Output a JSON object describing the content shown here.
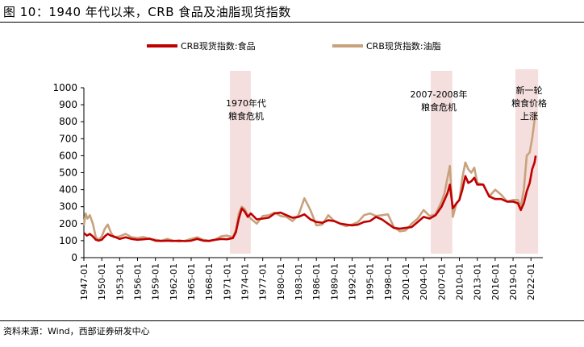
{
  "page": {
    "title": "图 10：1940 年代以来，CRB 食品及油脂现货指数",
    "source": "资料来源：Wind，西部证券研发中心"
  },
  "colors": {
    "food": "#c00000",
    "oils": "#c8a27c",
    "shade": "#f5dede"
  },
  "chart_data": {
    "type": "line",
    "title": "",
    "xlabel": "",
    "ylabel": "",
    "ylim": [
      0,
      1000
    ],
    "yticks": [
      0,
      100,
      200,
      300,
      400,
      500,
      600,
      700,
      800,
      900,
      1000
    ],
    "x_ticks": [
      "1947-01",
      "1950-01",
      "1953-01",
      "1956-01",
      "1959-01",
      "1962-01",
      "1965-01",
      "1968-01",
      "1971-01",
      "1974-01",
      "1977-01",
      "1980-01",
      "1983-01",
      "1986-01",
      "1989-01",
      "1992-01",
      "1995-01",
      "1998-01",
      "2001-01",
      "2004-01",
      "2007-01",
      "2010-01",
      "2013-01",
      "2016-01",
      "2019-01",
      "2022-01"
    ],
    "xlim": [
      1947.0,
      2024.0
    ],
    "grid": false,
    "legend": "top",
    "series": [
      {
        "name": "CRB现货指数:食品",
        "points": [
          [
            1947.0,
            145
          ],
          [
            1947.5,
            130
          ],
          [
            1948.0,
            140
          ],
          [
            1948.5,
            125
          ],
          [
            1949.0,
            105
          ],
          [
            1949.5,
            100
          ],
          [
            1950.0,
            105
          ],
          [
            1950.5,
            125
          ],
          [
            1951.0,
            140
          ],
          [
            1951.5,
            130
          ],
          [
            1952.0,
            125
          ],
          [
            1953.0,
            110
          ],
          [
            1954.0,
            120
          ],
          [
            1955.0,
            110
          ],
          [
            1956.0,
            105
          ],
          [
            1957.0,
            108
          ],
          [
            1958.0,
            112
          ],
          [
            1959.0,
            100
          ],
          [
            1960.0,
            98
          ],
          [
            1961.0,
            100
          ],
          [
            1962.0,
            98
          ],
          [
            1963.0,
            100
          ],
          [
            1964.0,
            97
          ],
          [
            1965.0,
            100
          ],
          [
            1966.0,
            110
          ],
          [
            1967.0,
            100
          ],
          [
            1968.0,
            98
          ],
          [
            1969.0,
            105
          ],
          [
            1970.0,
            110
          ],
          [
            1971.0,
            108
          ],
          [
            1972.0,
            115
          ],
          [
            1972.5,
            150
          ],
          [
            1973.0,
            230
          ],
          [
            1973.5,
            290
          ],
          [
            1974.0,
            270
          ],
          [
            1974.5,
            240
          ],
          [
            1975.0,
            260
          ],
          [
            1976.0,
            225
          ],
          [
            1977.0,
            230
          ],
          [
            1978.0,
            235
          ],
          [
            1979.0,
            260
          ],
          [
            1980.0,
            265
          ],
          [
            1981.0,
            250
          ],
          [
            1982.0,
            235
          ],
          [
            1983.0,
            240
          ],
          [
            1984.0,
            255
          ],
          [
            1985.0,
            225
          ],
          [
            1986.0,
            210
          ],
          [
            1987.0,
            205
          ],
          [
            1988.0,
            220
          ],
          [
            1989.0,
            215
          ],
          [
            1990.0,
            200
          ],
          [
            1991.0,
            195
          ],
          [
            1992.0,
            190
          ],
          [
            1993.0,
            195
          ],
          [
            1994.0,
            210
          ],
          [
            1995.0,
            215
          ],
          [
            1996.0,
            240
          ],
          [
            1997.0,
            225
          ],
          [
            1998.0,
            200
          ],
          [
            1999.0,
            175
          ],
          [
            2000.0,
            170
          ],
          [
            2001.0,
            175
          ],
          [
            2002.0,
            180
          ],
          [
            2003.0,
            210
          ],
          [
            2004.0,
            240
          ],
          [
            2005.0,
            230
          ],
          [
            2006.0,
            250
          ],
          [
            2007.0,
            300
          ],
          [
            2007.5,
            340
          ],
          [
            2008.0,
            380
          ],
          [
            2008.4,
            430
          ],
          [
            2008.9,
            290
          ],
          [
            2009.5,
            320
          ],
          [
            2010.0,
            340
          ],
          [
            2010.5,
            400
          ],
          [
            2011.0,
            480
          ],
          [
            2011.5,
            440
          ],
          [
            2012.0,
            450
          ],
          [
            2012.5,
            470
          ],
          [
            2013.0,
            430
          ],
          [
            2014.0,
            430
          ],
          [
            2015.0,
            360
          ],
          [
            2016.0,
            345
          ],
          [
            2017.0,
            345
          ],
          [
            2018.0,
            330
          ],
          [
            2019.0,
            330
          ],
          [
            2019.8,
            320
          ],
          [
            2020.3,
            280
          ],
          [
            2020.8,
            320
          ],
          [
            2021.3,
            390
          ],
          [
            2021.8,
            440
          ],
          [
            2022.2,
            520
          ],
          [
            2022.6,
            560
          ],
          [
            2022.8,
            600
          ]
        ]
      },
      {
        "name": "CRB现货指数:油脂",
        "points": [
          [
            1947.0,
            190
          ],
          [
            1947.3,
            260
          ],
          [
            1947.6,
            230
          ],
          [
            1948.0,
            250
          ],
          [
            1948.5,
            200
          ],
          [
            1949.0,
            120
          ],
          [
            1949.5,
            105
          ],
          [
            1950.0,
            125
          ],
          [
            1950.5,
            170
          ],
          [
            1951.0,
            195
          ],
          [
            1951.5,
            150
          ],
          [
            1952.0,
            120
          ],
          [
            1953.0,
            125
          ],
          [
            1954.0,
            140
          ],
          [
            1955.0,
            120
          ],
          [
            1956.0,
            115
          ],
          [
            1957.0,
            122
          ],
          [
            1958.0,
            110
          ],
          [
            1959.0,
            105
          ],
          [
            1960.0,
            100
          ],
          [
            1961.0,
            110
          ],
          [
            1962.0,
            100
          ],
          [
            1963.0,
            95
          ],
          [
            1964.0,
            100
          ],
          [
            1965.0,
            110
          ],
          [
            1966.0,
            120
          ],
          [
            1967.0,
            105
          ],
          [
            1968.0,
            100
          ],
          [
            1969.0,
            105
          ],
          [
            1970.0,
            125
          ],
          [
            1971.0,
            130
          ],
          [
            1972.0,
            120
          ],
          [
            1972.5,
            160
          ],
          [
            1973.0,
            260
          ],
          [
            1973.5,
            300
          ],
          [
            1974.0,
            285
          ],
          [
            1974.5,
            250
          ],
          [
            1975.0,
            230
          ],
          [
            1976.0,
            200
          ],
          [
            1977.0,
            245
          ],
          [
            1978.0,
            250
          ],
          [
            1979.0,
            265
          ],
          [
            1980.0,
            245
          ],
          [
            1981.0,
            240
          ],
          [
            1982.0,
            215
          ],
          [
            1983.0,
            250
          ],
          [
            1984.0,
            350
          ],
          [
            1985.0,
            280
          ],
          [
            1986.0,
            190
          ],
          [
            1987.0,
            195
          ],
          [
            1988.0,
            250
          ],
          [
            1989.0,
            215
          ],
          [
            1990.0,
            200
          ],
          [
            1991.0,
            185
          ],
          [
            1992.0,
            195
          ],
          [
            1993.0,
            210
          ],
          [
            1994.0,
            250
          ],
          [
            1995.0,
            260
          ],
          [
            1996.0,
            245
          ],
          [
            1997.0,
            250
          ],
          [
            1998.0,
            255
          ],
          [
            1999.0,
            180
          ],
          [
            2000.0,
            155
          ],
          [
            2001.0,
            160
          ],
          [
            2002.0,
            200
          ],
          [
            2003.0,
            230
          ],
          [
            2004.0,
            280
          ],
          [
            2005.0,
            245
          ],
          [
            2006.0,
            255
          ],
          [
            2007.0,
            330
          ],
          [
            2007.5,
            380
          ],
          [
            2008.0,
            470
          ],
          [
            2008.4,
            540
          ],
          [
            2008.9,
            240
          ],
          [
            2009.5,
            320
          ],
          [
            2010.0,
            340
          ],
          [
            2010.5,
            470
          ],
          [
            2011.0,
            560
          ],
          [
            2011.5,
            520
          ],
          [
            2012.0,
            500
          ],
          [
            2012.5,
            530
          ],
          [
            2013.0,
            440
          ],
          [
            2014.0,
            430
          ],
          [
            2015.0,
            360
          ],
          [
            2016.0,
            400
          ],
          [
            2017.0,
            370
          ],
          [
            2018.0,
            330
          ],
          [
            2019.0,
            340
          ],
          [
            2019.8,
            340
          ],
          [
            2020.3,
            300
          ],
          [
            2020.8,
            400
          ],
          [
            2021.3,
            600
          ],
          [
            2021.8,
            620
          ],
          [
            2022.2,
            700
          ],
          [
            2022.5,
            780
          ],
          [
            2022.8,
            860
          ]
        ]
      }
    ],
    "annotations": [
      {
        "text": [
          "1970年代",
          "粮食危机"
        ],
        "x_from": 1971.5,
        "x_to": 1975.0
      },
      {
        "text": [
          "2007-2008年",
          "粮食危机"
        ],
        "x_from": 2005.2,
        "x_to": 2008.8
      },
      {
        "text": [
          "新一轮",
          "粮食价格",
          "上涨"
        ],
        "x_from": 2019.4,
        "x_to": 2023.2
      }
    ]
  }
}
